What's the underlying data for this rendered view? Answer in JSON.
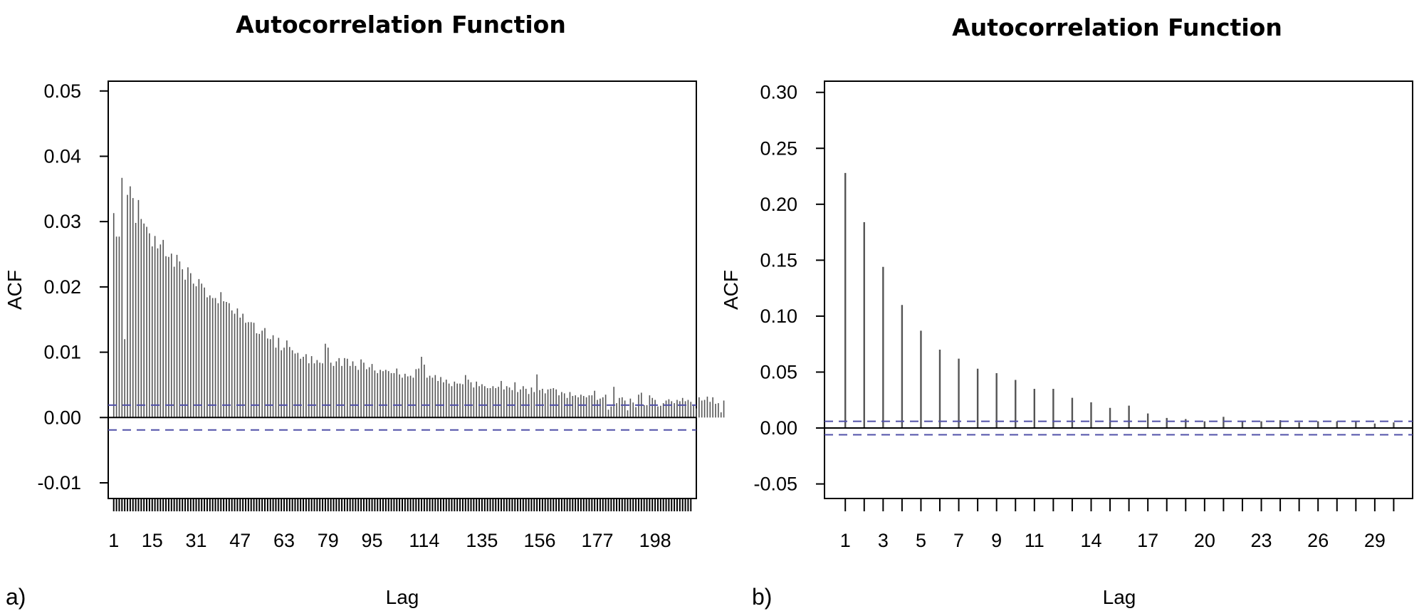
{
  "chart_data": [
    {
      "type": "bar",
      "panel_label": "a)",
      "title": "Autocorrelation Function",
      "xlabel": "Lag",
      "ylabel": "ACF",
      "ylim": [
        -0.0124,
        0.0515
      ],
      "yticks": [
        -0.01,
        0.0,
        0.01,
        0.02,
        0.03,
        0.04,
        0.05
      ],
      "ytick_labels": [
        "-0.01",
        "0.00",
        "0.01",
        "0.02",
        "0.03",
        "0.04",
        "0.05"
      ],
      "xlim": [
        -1.0,
        213.0
      ],
      "xticks": [
        1,
        15,
        31,
        47,
        63,
        79,
        95,
        114,
        135,
        156,
        177,
        198
      ],
      "xtick_labels": [
        "1",
        "15",
        "31",
        "47",
        "63",
        "79",
        "95",
        "114",
        "135",
        "156",
        "177",
        "198"
      ],
      "lag_tick_range": [
        1,
        211
      ],
      "ci": 0.0019,
      "lags_start": 1,
      "values": [
        0.0313,
        0.0277,
        0.0277,
        0.0367,
        0.012,
        0.0341,
        0.0354,
        0.0336,
        0.0298,
        0.0333,
        0.0304,
        0.0297,
        0.0292,
        0.0282,
        0.0262,
        0.0278,
        0.0259,
        0.0265,
        0.0272,
        0.0247,
        0.0246,
        0.0251,
        0.0231,
        0.0249,
        0.0239,
        0.0227,
        0.0211,
        0.023,
        0.0221,
        0.0205,
        0.0201,
        0.0212,
        0.0205,
        0.0199,
        0.0184,
        0.0187,
        0.0183,
        0.0183,
        0.0175,
        0.0192,
        0.0178,
        0.0177,
        0.0175,
        0.0164,
        0.0159,
        0.0167,
        0.0153,
        0.0159,
        0.0145,
        0.0146,
        0.0146,
        0.0145,
        0.0129,
        0.0128,
        0.0133,
        0.0137,
        0.0121,
        0.012,
        0.0126,
        0.0107,
        0.0122,
        0.0103,
        0.0107,
        0.0118,
        0.0108,
        0.0103,
        0.0098,
        0.0099,
        0.009,
        0.0093,
        0.0097,
        0.0083,
        0.0094,
        0.0083,
        0.0088,
        0.0084,
        0.0083,
        0.0113,
        0.0107,
        0.0084,
        0.0079,
        0.0086,
        0.0091,
        0.0079,
        0.0091,
        0.009,
        0.0079,
        0.0086,
        0.0079,
        0.0073,
        0.0089,
        0.0084,
        0.0074,
        0.0077,
        0.0082,
        0.0072,
        0.0068,
        0.0073,
        0.0071,
        0.0073,
        0.0071,
        0.0068,
        0.0068,
        0.0075,
        0.0066,
        0.0061,
        0.0067,
        0.0063,
        0.0064,
        0.0061,
        0.0074,
        0.0075,
        0.0093,
        0.0081,
        0.0061,
        0.0064,
        0.0061,
        0.0065,
        0.0056,
        0.0062,
        0.0054,
        0.0058,
        0.0052,
        0.0048,
        0.0055,
        0.0052,
        0.0052,
        0.0051,
        0.0065,
        0.0058,
        0.0054,
        0.0046,
        0.0055,
        0.0048,
        0.0051,
        0.0048,
        0.0045,
        0.0045,
        0.0048,
        0.0045,
        0.0047,
        0.0056,
        0.0043,
        0.0048,
        0.0046,
        0.0042,
        0.0054,
        0.0039,
        0.0043,
        0.0048,
        0.0044,
        0.0036,
        0.0046,
        0.0039,
        0.0066,
        0.0042,
        0.0044,
        0.0037,
        0.0043,
        0.0044,
        0.0045,
        0.0043,
        0.0034,
        0.0039,
        0.0037,
        0.003,
        0.0039,
        0.0033,
        0.0034,
        0.0031,
        0.0035,
        0.0033,
        0.0031,
        0.0034,
        0.0034,
        0.0041,
        0.0027,
        0.0029,
        0.0031,
        0.0035,
        0.0012,
        0.0017,
        0.0047,
        0.0022,
        0.003,
        0.0031,
        0.0026,
        0.0011,
        0.0029,
        0.0023,
        0.0016,
        0.0035,
        0.0038,
        0.0019,
        0.0019,
        0.0034,
        0.003,
        0.0027,
        0.0017,
        0.0018,
        0.0022,
        0.0026,
        0.0028,
        0.0025,
        0.0022,
        0.0027,
        0.0025,
        0.003,
        0.0025,
        0.0027,
        0.0024,
        0.0018,
        0.0014,
        0.0031,
        0.0026,
        0.0027,
        0.0032,
        0.0024,
        0.0031,
        0.0021,
        0.0022,
        0.0008,
        0.0026
      ]
    },
    {
      "type": "bar",
      "panel_label": "b)",
      "title": "Autocorrelation Function",
      "xlabel": "Lag",
      "ylabel": "ACF",
      "ylim": [
        -0.063,
        0.31
      ],
      "yticks": [
        -0.05,
        0.0,
        0.05,
        0.1,
        0.15,
        0.2,
        0.25,
        0.3
      ],
      "ytick_labels": [
        "-0.05",
        "0.00",
        "0.05",
        "0.10",
        "0.15",
        "0.20",
        "0.25",
        "0.30"
      ],
      "xlim": [
        -0.1,
        31.0
      ],
      "xticks": [
        1,
        3,
        5,
        7,
        9,
        11,
        14,
        17,
        20,
        23,
        26,
        29
      ],
      "xtick_labels": [
        "1",
        "3",
        "5",
        "7",
        "9",
        "11",
        "14",
        "17",
        "20",
        "23",
        "26",
        "29"
      ],
      "lag_tick_range": [
        1,
        30
      ],
      "ci": 0.006,
      "lags_start": 1,
      "values": [
        0.228,
        0.184,
        0.144,
        0.11,
        0.087,
        0.07,
        0.062,
        0.053,
        0.049,
        0.043,
        0.035,
        0.035,
        0.027,
        0.023,
        0.018,
        0.02,
        0.013,
        0.009,
        0.008,
        0.006,
        0.01,
        0.006,
        0.006,
        0.007,
        0.005,
        0.006,
        0.006,
        0.006,
        0.004,
        0.005
      ]
    }
  ],
  "colors": {
    "bar": "#555555",
    "axis": "#000000",
    "ci_line": "#5050a8"
  }
}
